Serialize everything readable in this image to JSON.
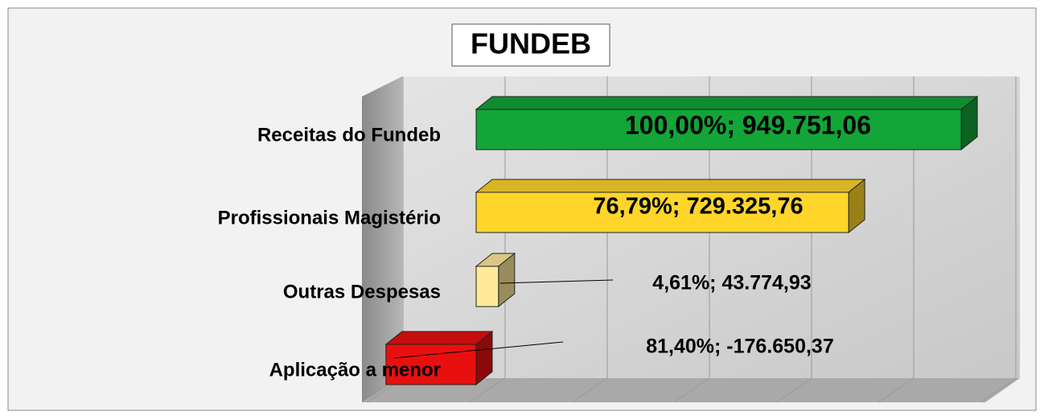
{
  "chart_data": {
    "type": "bar3d_horizontal",
    "title": "FUNDEB",
    "categories": [
      "Receitas do Fundeb",
      "Profissionais Magistério",
      "Outras Despesas",
      "Aplicação a menor"
    ],
    "values": [
      949751.06,
      729325.76,
      43774.93,
      -176650.37
    ],
    "value_labels": [
      "100,00%; 949.751,06",
      "76,79%; 729.325,76",
      "4,61%; 43.774,93",
      "81,40%; -176.650,37"
    ],
    "colors": [
      "#13a538",
      "#ffd52a",
      "#ffea9a",
      "#e8100f"
    ],
    "xlim": [
      -200000,
      1000000
    ],
    "xticks": [
      -200000,
      0,
      200000,
      400000,
      600000,
      800000,
      1000000
    ],
    "grid": true
  }
}
